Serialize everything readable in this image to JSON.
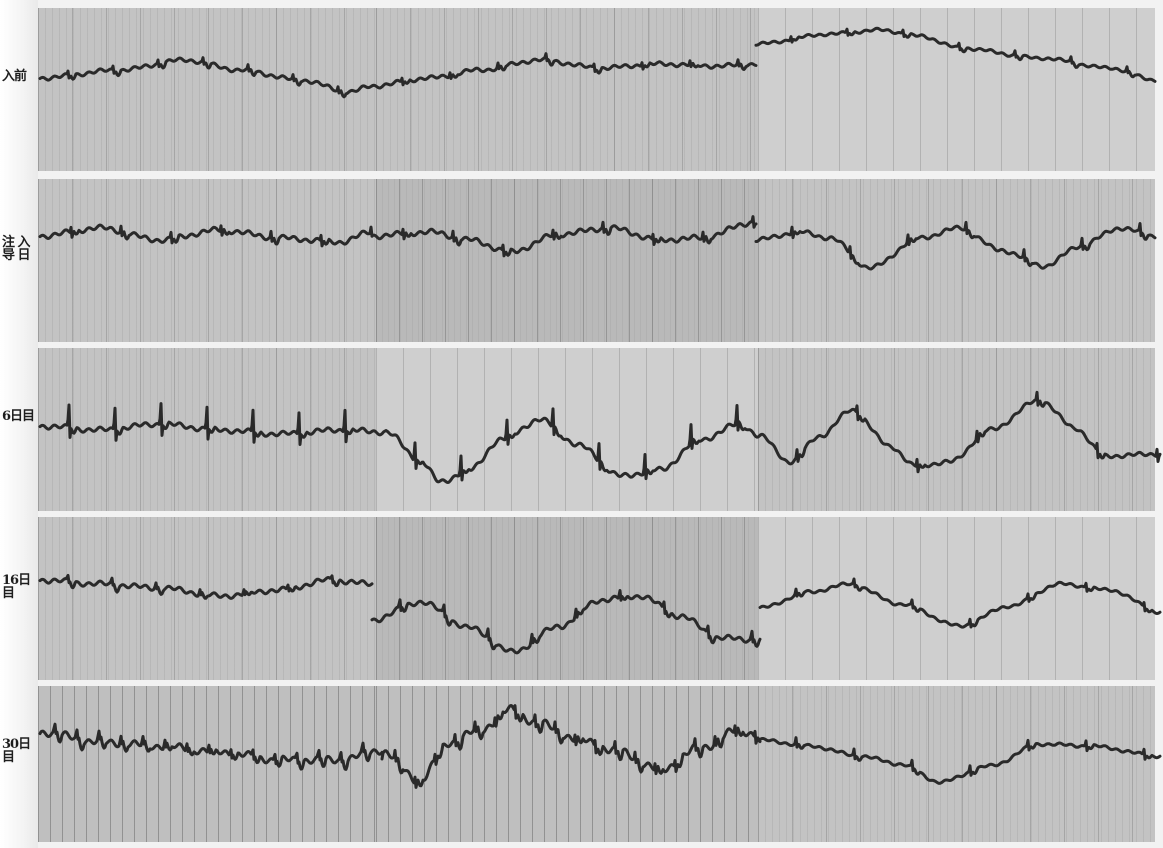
{
  "strip_labels": [
    "入前",
    "注 入\n导 日",
    "6日目",
    "16日目",
    "30日目"
  ],
  "colors": {
    "trace": "#2a2a2a",
    "paper": "#c2c2c2",
    "separator": "#f2f2f2"
  }
}
